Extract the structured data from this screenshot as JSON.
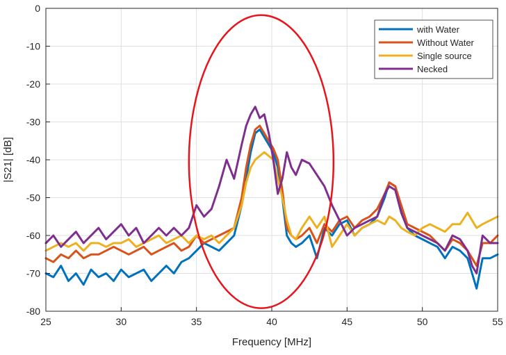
{
  "chart_data": {
    "type": "line",
    "title": "",
    "xlabel": "Frequency [MHz]",
    "ylabel": "|S21| [dB]",
    "xlim": [
      25,
      55
    ],
    "ylim": [
      -80,
      0
    ],
    "x_ticks": [
      25,
      30,
      35,
      40,
      45,
      50,
      55
    ],
    "y_ticks": [
      0,
      -10,
      -20,
      -30,
      -40,
      -50,
      -60,
      -70,
      -80
    ],
    "grid": true,
    "legend_position": "top-right",
    "annotation": {
      "shape": "ellipse",
      "color": "#e8141b",
      "center": [
        39.3,
        -40.5
      ],
      "radii": [
        4.8,
        38.7
      ]
    },
    "series": [
      {
        "name": "with Water",
        "color": "#0072bd",
        "x": [
          25,
          25.5,
          26,
          26.5,
          27,
          27.5,
          28,
          28.5,
          29,
          29.5,
          30,
          30.5,
          31,
          31.5,
          32,
          32.5,
          33,
          33.5,
          34,
          34.5,
          35,
          35.5,
          36,
          36.5,
          37,
          37.5,
          38,
          38.3,
          38.6,
          38.9,
          39.2,
          39.5,
          39.8,
          40.1,
          40.4,
          40.7,
          41,
          41.3,
          41.6,
          42,
          42.5,
          43,
          43.5,
          44,
          44.5,
          45,
          45.5,
          46,
          46.5,
          47,
          47.5,
          47.8,
          48.2,
          48.6,
          49,
          49.5,
          50,
          50.5,
          51,
          51.5,
          52,
          52.5,
          53,
          53.3,
          53.6,
          54,
          54.5,
          55
        ],
        "y": [
          -70,
          -71,
          -68,
          -72,
          -70,
          -73,
          -69,
          -71,
          -70,
          -72,
          -69,
          -71,
          -70,
          -69,
          -72,
          -70,
          -68,
          -70,
          -67,
          -66,
          -64,
          -62,
          -63,
          -64,
          -62,
          -60,
          -52,
          -45,
          -38,
          -33,
          -32,
          -34,
          -36,
          -38,
          -42,
          -50,
          -60,
          -62,
          -63,
          -62,
          -60,
          -66,
          -58,
          -60,
          -57,
          -56,
          -60,
          -58,
          -57,
          -55,
          -50,
          -46,
          -47,
          -53,
          -58,
          -60,
          -61,
          -62,
          -63,
          -66,
          -63,
          -64,
          -66,
          -70,
          -74,
          -66,
          -66,
          -65
        ]
      },
      {
        "name": "Without Water",
        "color": "#d95319",
        "x": [
          25,
          25.5,
          26,
          26.5,
          27,
          27.5,
          28,
          28.5,
          29,
          29.5,
          30,
          30.5,
          31,
          31.5,
          32,
          32.5,
          33,
          33.5,
          34,
          34.5,
          35,
          35.5,
          36,
          36.5,
          37,
          37.5,
          38,
          38.3,
          38.6,
          38.9,
          39.2,
          39.5,
          39.8,
          40.1,
          40.4,
          40.7,
          41,
          41.3,
          41.6,
          42,
          42.5,
          43,
          43.5,
          44,
          44.5,
          45,
          45.5,
          46,
          46.5,
          47,
          47.5,
          47.8,
          48.2,
          48.6,
          49,
          49.5,
          50,
          50.5,
          51,
          51.5,
          52,
          52.5,
          53,
          53.3,
          53.6,
          54,
          54.5,
          55
        ],
        "y": [
          -66,
          -67,
          -65,
          -66,
          -64,
          -66,
          -65,
          -65,
          -64,
          -63,
          -64,
          -65,
          -64,
          -63,
          -65,
          -64,
          -63,
          -62,
          -64,
          -63,
          -60,
          -62,
          -61,
          -60,
          -59,
          -58,
          -50,
          -42,
          -36,
          -32,
          -31,
          -33,
          -35,
          -37,
          -40,
          -48,
          -58,
          -60,
          -61,
          -60,
          -58,
          -62,
          -57,
          -59,
          -56,
          -55,
          -58,
          -56,
          -55,
          -53,
          -49,
          -46,
          -47,
          -52,
          -57,
          -58,
          -59,
          -60,
          -62,
          -64,
          -61,
          -62,
          -64,
          -66,
          -68,
          -62,
          -62,
          -60
        ]
      },
      {
        "name": "Single source",
        "color": "#edb120",
        "x": [
          25,
          25.5,
          26,
          26.5,
          27,
          27.5,
          28,
          28.5,
          29,
          29.5,
          30,
          30.5,
          31,
          31.5,
          32,
          32.5,
          33,
          33.5,
          34,
          34.5,
          35,
          35.5,
          36,
          36.5,
          37,
          37.5,
          38,
          38.3,
          38.6,
          38.9,
          39.2,
          39.5,
          39.8,
          40.1,
          40.4,
          40.7,
          41,
          41.3,
          41.6,
          42,
          42.5,
          43,
          43.5,
          44,
          44.5,
          45,
          45.5,
          46,
          46.5,
          47,
          47.5,
          47.8,
          48.2,
          48.6,
          49,
          49.5,
          50,
          50.5,
          51,
          51.5,
          52,
          52.5,
          53,
          53.3,
          53.6,
          54,
          54.5,
          55
        ],
        "y": [
          -64,
          -63,
          -62,
          -63,
          -62,
          -64,
          -62,
          -62,
          -63,
          -62,
          -62,
          -61,
          -63,
          -62,
          -61,
          -60,
          -62,
          -61,
          -60,
          -62,
          -60,
          -61,
          -60,
          -62,
          -60,
          -58,
          -52,
          -46,
          -42,
          -40,
          -39,
          -38,
          -39,
          -40,
          -45,
          -50,
          -56,
          -60,
          -61,
          -58,
          -55,
          -58,
          -55,
          -63,
          -60,
          -57,
          -60,
          -58,
          -57,
          -56,
          -57,
          -55,
          -56,
          -58,
          -59,
          -60,
          -58,
          -57,
          -58,
          -59,
          -57,
          -57,
          -54,
          -56,
          -58,
          -57,
          -56,
          -55
        ]
      },
      {
        "name": "Necked",
        "color": "#7e2f8e",
        "x": [
          25,
          25.5,
          26,
          26.5,
          27,
          27.5,
          28,
          28.5,
          29,
          29.5,
          30,
          30.5,
          31,
          31.5,
          32,
          32.5,
          33,
          33.5,
          34,
          34.5,
          35,
          35.5,
          36,
          36.5,
          37,
          37.5,
          38,
          38.3,
          38.6,
          38.9,
          39.2,
          39.5,
          39.8,
          40.1,
          40.4,
          40.7,
          41,
          41.3,
          41.6,
          42,
          42.5,
          43,
          43.5,
          44,
          44.5,
          45,
          45.5,
          46,
          46.5,
          47,
          47.5,
          47.8,
          48.2,
          48.6,
          49,
          49.5,
          50,
          50.5,
          51,
          51.5,
          52,
          52.5,
          53,
          53.3,
          53.6,
          54,
          54.5,
          55
        ],
        "y": [
          -62,
          -60,
          -63,
          -61,
          -59,
          -62,
          -60,
          -58,
          -61,
          -59,
          -57,
          -60,
          -58,
          -62,
          -60,
          -58,
          -60,
          -58,
          -60,
          -58,
          -52,
          -55,
          -53,
          -47,
          -40,
          -45,
          -36,
          -31,
          -28,
          -26,
          -29,
          -28,
          -33,
          -40,
          -49,
          -45,
          -38,
          -42,
          -44,
          -40,
          -41,
          -44,
          -47,
          -52,
          -56,
          -60,
          -58,
          -57,
          -56,
          -55,
          -49,
          -47,
          -48,
          -54,
          -58,
          -59,
          -60,
          -61,
          -62,
          -64,
          -60,
          -61,
          -64,
          -68,
          -70,
          -60,
          -62,
          -62
        ]
      }
    ]
  }
}
